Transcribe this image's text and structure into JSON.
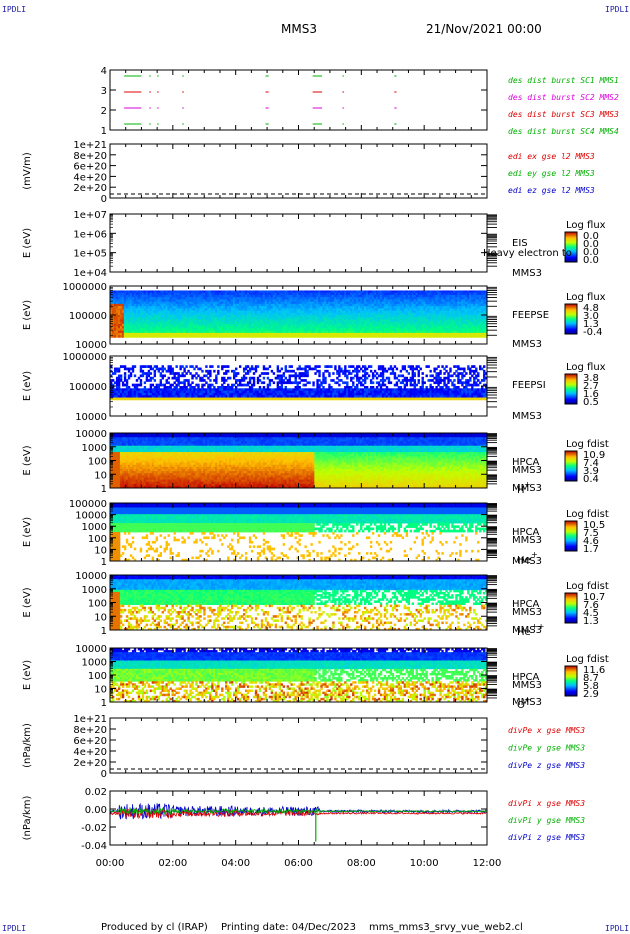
{
  "header": {
    "corner_tl": "IPDLI",
    "corner_tr": "IPDLI",
    "corner_bl": "IPDLI",
    "corner_br": "IPDLI",
    "mission": "MMS3",
    "date": "21/Nov/2021 00:00"
  },
  "footer": {
    "producer": "Produced by cl (IRAP)",
    "printing": "Printing date: 04/Dec/2023",
    "file": "mms_mms3_srvy_vue_web2.cl"
  },
  "colors": {
    "red": "#dd0000",
    "green": "#00b000",
    "blue": "#0000cc",
    "magenta": "#dd00dd"
  },
  "chart_data": [
    {
      "id": "burst",
      "type": "line",
      "y_ticks": [
        "4",
        "3",
        "2",
        "1"
      ],
      "series": [
        {
          "name": "des dist burst SC1 MMS1",
          "color": "#00b000",
          "level": 4
        },
        {
          "name": "des dist burst SC2 MMS2",
          "color": "#dd00dd",
          "level": 2
        },
        {
          "name": "des dist burst SC3 MMS3",
          "color": "#dd0000",
          "level": 3
        },
        {
          "name": "des dist burst SC4 MMS4",
          "color": "#00b000",
          "level": 1
        }
      ],
      "burst_intervals_h": [
        [
          0.35,
          0.95
        ],
        [
          1.25,
          1.3
        ],
        [
          1.5,
          1.55
        ],
        [
          2.3,
          2.35
        ],
        [
          4.95,
          5.05
        ],
        [
          6.45,
          6.75
        ],
        [
          7.4,
          7.45
        ],
        [
          9.05,
          9.12
        ]
      ]
    },
    {
      "id": "efield",
      "type": "line",
      "ylabel": "(mV/m)",
      "y_ticks": [
        "1e+21",
        "8e+20",
        "6e+20",
        "4e+20",
        "2e+20",
        "0"
      ],
      "series": [
        {
          "name": "edi ex gse l2 MMS3",
          "color": "#dd0000"
        },
        {
          "name": "edi ey gse l2 MMS3",
          "color": "#00b000"
        },
        {
          "name": "edi ez gse l2 MMS3",
          "color": "#0000cc"
        }
      ],
      "values": "0 (dashed zero line only)"
    },
    {
      "id": "eis",
      "type": "heatmap",
      "ylabel": "E (eV)",
      "y_ticks": [
        "1e+07",
        "1e+06",
        "1e+05",
        "1e+04"
      ],
      "side_labels": [
        "EIS",
        "Heavy electron to",
        "MMS3"
      ],
      "colorbar": {
        "title": "Log flux",
        "ticks": [
          "0.0",
          "0.0",
          "0.0",
          "0.0"
        ]
      },
      "values": "empty"
    },
    {
      "id": "feepse",
      "type": "heatmap",
      "ylabel": "E (eV)",
      "y_ticks": [
        "1000000",
        "100000",
        "10000"
      ],
      "side_labels": [
        "FEEPSE",
        "MMS3"
      ],
      "colorbar": {
        "title": "Log flux",
        "ticks": [
          "4.8",
          "3.0",
          "1.3",
          "-0.4"
        ]
      }
    },
    {
      "id": "feepsi",
      "type": "heatmap",
      "ylabel": "E (eV)",
      "y_ticks": [
        "1000000",
        "100000",
        "10000"
      ],
      "side_labels": [
        "FEEPSI",
        "MMS3"
      ],
      "colorbar": {
        "title": "Log flux",
        "ticks": [
          "3.8",
          "2.7",
          "1.6",
          "0.5"
        ]
      }
    },
    {
      "id": "hpca_h",
      "type": "heatmap",
      "ylabel": "E (eV)",
      "y_ticks": [
        "10000",
        "1000",
        "100",
        "10",
        "1"
      ],
      "side_labels": [
        "HPCA",
        "MMS3",
        "H",
        "+"
      ],
      "colorbar": {
        "title": "Log fdist",
        "ticks": [
          "10.9",
          "7.4",
          "3.9",
          "0.4"
        ]
      }
    },
    {
      "id": "hpca_he",
      "type": "heatmap",
      "ylabel": "E (eV)",
      "y_ticks": [
        "100000",
        "10000",
        "1000",
        "100",
        "10",
        "1"
      ],
      "side_labels": [
        "HPCA",
        "MMS3",
        "He",
        "+"
      ],
      "colorbar": {
        "title": "Log fdist",
        "ticks": [
          "10.5",
          "7.5",
          "4.6",
          "1.7"
        ]
      }
    },
    {
      "id": "hpca_hepp",
      "type": "heatmap",
      "ylabel": "E (eV)",
      "y_ticks": [
        "10000",
        "1000",
        "100",
        "10",
        "1"
      ],
      "side_labels": [
        "HPCA",
        "MMS3",
        "He",
        "++"
      ],
      "colorbar": {
        "title": "Log fdist",
        "ticks": [
          "10.7",
          "7.6",
          "4.5",
          "1.3"
        ]
      }
    },
    {
      "id": "hpca_o",
      "type": "heatmap",
      "ylabel": "E (eV)",
      "y_ticks": [
        "10000",
        "1000",
        "100",
        "10",
        "1"
      ],
      "side_labels": [
        "HPCA",
        "MMS3",
        "O",
        "+"
      ],
      "colorbar": {
        "title": "Log fdist",
        "ticks": [
          "11.6",
          "8.7",
          "5.8",
          "2.9"
        ]
      }
    },
    {
      "id": "divpe",
      "type": "line",
      "ylabel": "(nPa/km)",
      "y_ticks": [
        "1e+21",
        "8e+20",
        "6e+20",
        "4e+20",
        "2e+20",
        "0"
      ],
      "series": [
        {
          "name": "divPe x gse MMS3",
          "color": "#dd0000"
        },
        {
          "name": "divPe y gse MMS3",
          "color": "#00b000"
        },
        {
          "name": "divPe z gse MMS3",
          "color": "#0000cc"
        }
      ],
      "values": "0 (dashed zero line only)"
    },
    {
      "id": "divpi",
      "type": "line",
      "ylabel": "(nPa/km)",
      "y_ticks": [
        "0.02",
        "0.00",
        "-0.02",
        "-0.04"
      ],
      "ylim": [
        -0.05,
        0.03
      ],
      "series": [
        {
          "name": "divPi x gse MMS3",
          "color": "#dd0000"
        },
        {
          "name": "divPi y gse MMS3",
          "color": "#00b000"
        },
        {
          "name": "divPi z gse MMS3",
          "color": "#0000cc"
        }
      ]
    }
  ],
  "x_axis": {
    "ticks": [
      "00:00",
      "02:00",
      "04:00",
      "06:00",
      "08:00",
      "10:00",
      "12:00"
    ],
    "range_h": [
      0,
      12
    ]
  }
}
